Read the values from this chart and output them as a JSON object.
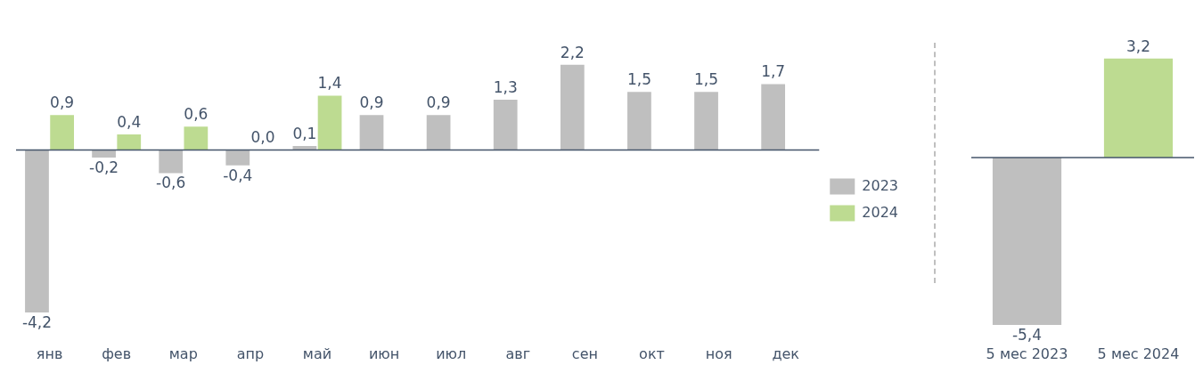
{
  "chart_data": [
    {
      "type": "bar",
      "categories": [
        "янв",
        "фев",
        "мар",
        "апр",
        "май",
        "июн",
        "июл",
        "авг",
        "сен",
        "окт",
        "ноя",
        "дек"
      ],
      "series": [
        {
          "name": "2023",
          "color": "#bfbfbf",
          "values": [
            -4.2,
            -0.2,
            -0.6,
            -0.4,
            0.1,
            0.9,
            0.9,
            1.3,
            2.2,
            1.5,
            1.5,
            1.7
          ],
          "value_labels": [
            "-4,2",
            "-0,2",
            "-0,6",
            "-0,4",
            "0,1",
            "0,9",
            "0,9",
            "1,3",
            "2,2",
            "1,5",
            "1,5",
            "1,7"
          ]
        },
        {
          "name": "2024",
          "color": "#bddb91",
          "values": [
            0.9,
            0.4,
            0.6,
            0.0,
            1.4,
            null,
            null,
            null,
            null,
            null,
            null,
            null
          ],
          "value_labels": [
            "0,9",
            "0,4",
            "0,6",
            "0,0",
            "1,4",
            null,
            null,
            null,
            null,
            null,
            null,
            null
          ]
        }
      ],
      "tick_labels": "x",
      "legend": "right"
    },
    {
      "type": "bar",
      "categories": [
        "5 мес 2023",
        "5 мес 2024"
      ],
      "series": [
        {
          "colors": [
            "#bfbfbf",
            "#bddb91"
          ],
          "values": [
            -5.4,
            3.2
          ],
          "value_labels": [
            "-5,4",
            "3,2"
          ]
        }
      ],
      "tick_labels": "x"
    }
  ]
}
